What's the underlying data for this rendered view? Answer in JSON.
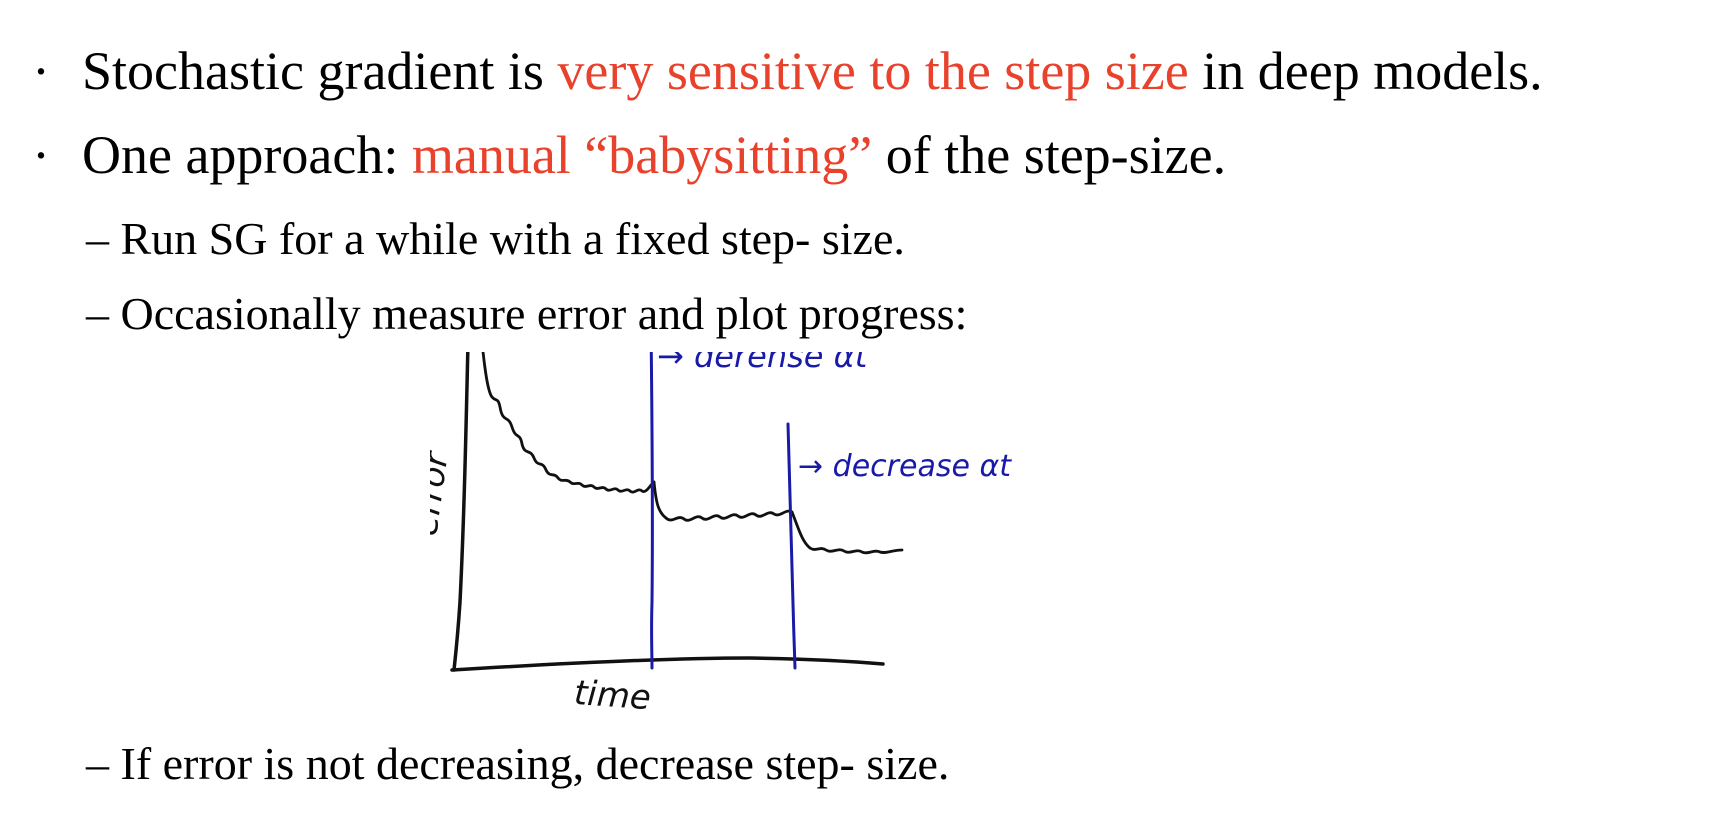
{
  "bullets": [
    {
      "prefix": "Stochastic gradient is ",
      "highlight": "very sensitive to the step size",
      "suffix": " in deep models."
    },
    {
      "prefix": "One approach: ",
      "highlight": "manual “babysitting”",
      "suffix": " of the step-size."
    }
  ],
  "subitems": [
    "– Run SG for a while with a fixed step- size.",
    "– Occasionally measure error and plot progress:",
    "– If error is not decreasing, decrease step- size."
  ],
  "sketch": {
    "ylabel": "error",
    "xlabel": "time",
    "annotations": [
      "→ derense αt",
      "→ decrease αt"
    ]
  },
  "colors": {
    "highlight": "#e8412c",
    "sketch_ink": "#111111",
    "annotation_ink": "#1a1aa8"
  }
}
